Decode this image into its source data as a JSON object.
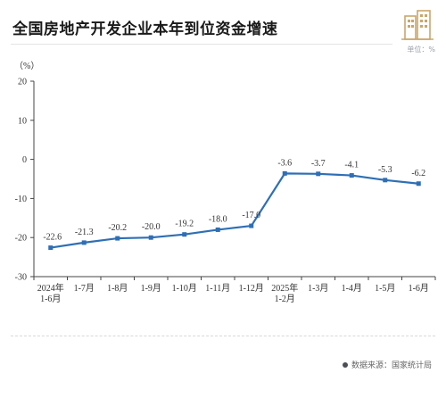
{
  "header": {
    "title": "全国房地产开发企业本年到位资金增速",
    "unit": "单位：%"
  },
  "footer": {
    "source": "数据来源：国家统计局"
  },
  "colors": {
    "line": "#2e6fb5",
    "marker": "#2e6fb5",
    "icon": "#c9a66b"
  },
  "chart_data": {
    "type": "line",
    "title": "全国房地产开发企业本年到位资金增速",
    "ylabel": "（%）",
    "ylim": [
      -30,
      20
    ],
    "yticks": [
      20,
      10,
      0,
      -10,
      -20,
      -30
    ],
    "grid": false,
    "categories": [
      [
        "2024年",
        "1-6月"
      ],
      [
        "1-7月"
      ],
      [
        "1-8月"
      ],
      [
        "1-9月"
      ],
      [
        "1-10月"
      ],
      [
        "1-11月"
      ],
      [
        "1-12月"
      ],
      [
        "2025年",
        "1-2月"
      ],
      [
        "1-3月"
      ],
      [
        "1-4月"
      ],
      [
        "1-5月"
      ],
      [
        "1-6月"
      ]
    ],
    "series": [
      {
        "values": [
          -22.6,
          -21.3,
          -20.2,
          -20.0,
          -19.2,
          -18.0,
          -17.0,
          -3.6,
          -3.7,
          -4.1,
          -5.3,
          -6.2
        ],
        "labels": [
          "-22.6",
          "-21.3",
          "-20.2",
          "-20.0",
          "-19.2",
          "-18.0",
          "-17.0",
          "-3.6",
          "-3.7",
          "-4.1",
          "-5.3",
          "-6.2"
        ]
      }
    ]
  }
}
